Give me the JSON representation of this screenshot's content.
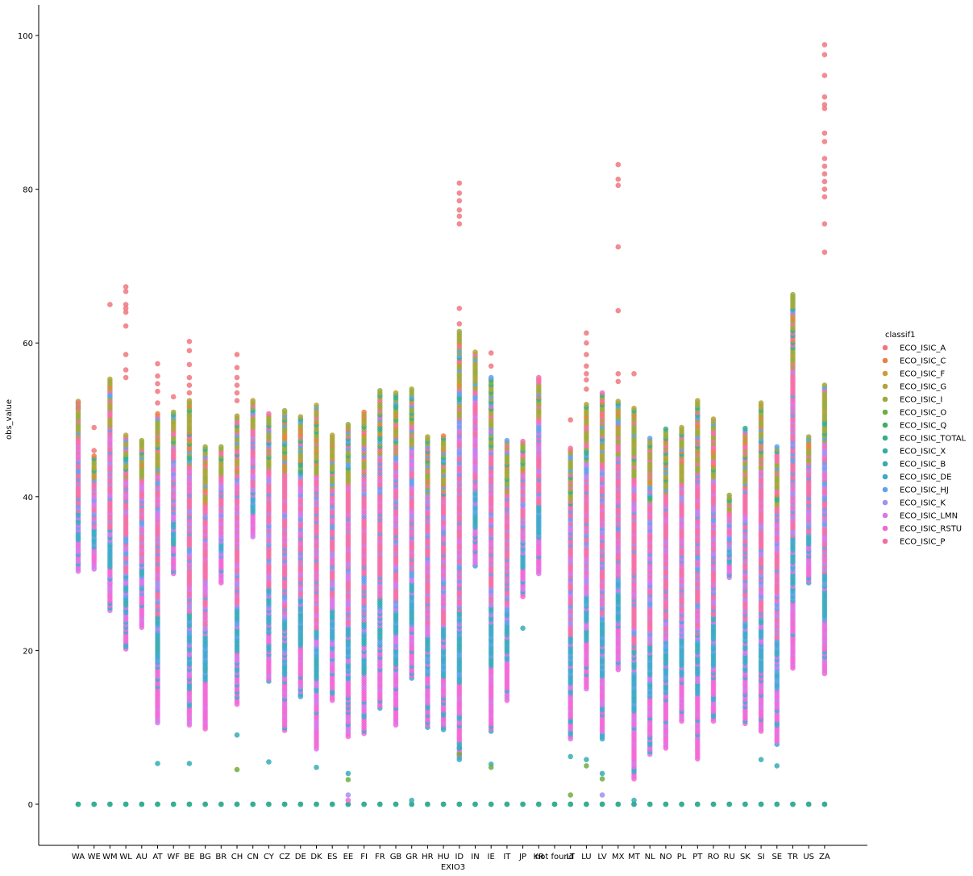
{
  "chart_data": {
    "type": "scatter",
    "xlabel": "EXIO3",
    "ylabel": "obs_value",
    "ylim": [
      -5,
      104
    ],
    "yticks": [
      0,
      20,
      40,
      60,
      80,
      100
    ],
    "grid": false,
    "categories": [
      "WA",
      "WE",
      "WM",
      "WL",
      "AU",
      "AT",
      "WF",
      "BE",
      "BG",
      "BR",
      "CH",
      "CN",
      "CY",
      "CZ",
      "DE",
      "DK",
      "ES",
      "EE",
      "FI",
      "FR",
      "GB",
      "GR",
      "HR",
      "HU",
      "ID",
      "IN",
      "IE",
      "IT",
      "JP",
      "KR",
      "not found",
      "LT",
      "LU",
      "LV",
      "MX",
      "MT",
      "NL",
      "NO",
      "PL",
      "PT",
      "RO",
      "RU",
      "SK",
      "SI",
      "SE",
      "TR",
      "US",
      "ZA"
    ],
    "legend": {
      "title": "classif1",
      "placement": "right",
      "items": [
        {
          "label": "ECO_ISIC_A",
          "color": "#f0777f"
        },
        {
          "label": "ECO_ISIC_C",
          "color": "#ec7f42"
        },
        {
          "label": "ECO_ISIC_F",
          "color": "#cf9a3c"
        },
        {
          "label": "ECO_ISIC_G",
          "color": "#b2a33a"
        },
        {
          "label": "ECO_ISIC_I",
          "color": "#9aaa3c"
        },
        {
          "label": "ECO_ISIC_O",
          "color": "#6fae3f"
        },
        {
          "label": "ECO_ISIC_Q",
          "color": "#3bb25e"
        },
        {
          "label": "ECO_ISIC_TOTAL",
          "color": "#35ae8c"
        },
        {
          "label": "ECO_ISIC_X",
          "color": "#36ad9e"
        },
        {
          "label": "ECO_ISIC_B",
          "color": "#38abb5"
        },
        {
          "label": "ECO_ISIC_DE",
          "color": "#3ea8cd"
        },
        {
          "label": "ECO_ISIC_HJ",
          "color": "#62a1ec"
        },
        {
          "label": "ECO_ISIC_K",
          "color": "#a48ff0"
        },
        {
          "label": "ECO_ISIC_LMN",
          "color": "#d877ea"
        },
        {
          "label": "ECO_ISIC_RSTU",
          "color": "#f267d6"
        },
        {
          "label": "ECO_ISIC_P",
          "color": "#f36ea7"
        }
      ]
    },
    "ranges": [
      {
        "cat": "WA",
        "min": 30.3,
        "max": 52.4,
        "top": [
          52.2,
          51.5
        ]
      },
      {
        "cat": "WE",
        "min": 30.6,
        "max": 45.3,
        "top": [
          49.0,
          46.0
        ]
      },
      {
        "cat": "WM",
        "min": 25.2,
        "max": 55.3,
        "top": [
          65.0
        ]
      },
      {
        "cat": "WL",
        "min": 20.2,
        "max": 48.0,
        "top": [
          67.3,
          66.7,
          65.0,
          64.5,
          64.0,
          62.2,
          58.5,
          56.5,
          55.5
        ]
      },
      {
        "cat": "AU",
        "min": 23.0,
        "max": 47.3,
        "top": []
      },
      {
        "cat": "AT",
        "min": 10.6,
        "max": 50.8,
        "top": [
          57.3,
          55.7,
          54.7,
          53.7,
          52.2
        ],
        "low": [
          5.3
        ]
      },
      {
        "cat": "WF",
        "min": 30.0,
        "max": 51.0,
        "top": [
          53.0
        ]
      },
      {
        "cat": "BE",
        "min": 10.3,
        "max": 52.5,
        "top": [
          60.2,
          59.0,
          57.2,
          55.5,
          54.5,
          53.5
        ],
        "low": [
          5.3
        ]
      },
      {
        "cat": "BG",
        "min": 9.8,
        "max": 46.5,
        "top": []
      },
      {
        "cat": "BR",
        "min": 28.8,
        "max": 46.5,
        "top": []
      },
      {
        "cat": "CH",
        "min": 13.0,
        "max": 50.5,
        "top": [
          58.5,
          56.8,
          55.5,
          54.5,
          53.5,
          52.5
        ],
        "low": [
          9.0,
          4.5
        ]
      },
      {
        "cat": "CN",
        "min": 34.8,
        "max": 52.5,
        "top": []
      },
      {
        "cat": "CY",
        "min": 16.0,
        "max": 50.8,
        "top": [],
        "low": [
          5.5
        ]
      },
      {
        "cat": "CZ",
        "min": 9.6,
        "max": 51.2,
        "top": []
      },
      {
        "cat": "DE",
        "min": 14.0,
        "max": 50.4,
        "top": []
      },
      {
        "cat": "DK",
        "min": 7.2,
        "max": 51.9,
        "top": [],
        "low": [
          4.8
        ]
      },
      {
        "cat": "ES",
        "min": 13.5,
        "max": 48.0,
        "top": []
      },
      {
        "cat": "EE",
        "min": 8.8,
        "max": 49.4,
        "top": [],
        "low": [
          4.0,
          3.2,
          1.2,
          0.5
        ]
      },
      {
        "cat": "FI",
        "min": 9.2,
        "max": 51.0,
        "top": []
      },
      {
        "cat": "FR",
        "min": 12.5,
        "max": 53.8,
        "top": []
      },
      {
        "cat": "GB",
        "min": 10.3,
        "max": 53.5,
        "top": []
      },
      {
        "cat": "GR",
        "min": 16.4,
        "max": 54.0,
        "top": [],
        "low": [
          0.5
        ]
      },
      {
        "cat": "HR",
        "min": 10.0,
        "max": 47.8,
        "top": []
      },
      {
        "cat": "HU",
        "min": 9.7,
        "max": 47.9,
        "top": []
      },
      {
        "cat": "ID",
        "min": 5.8,
        "max": 61.5,
        "top": [
          80.8,
          79.5,
          78.5,
          77.3,
          76.5,
          75.5,
          64.5,
          62.5
        ],
        "low": [
          7.3,
          6.5
        ]
      },
      {
        "cat": "IN",
        "min": 31.0,
        "max": 58.8,
        "top": []
      },
      {
        "cat": "IE",
        "min": 9.5,
        "max": 55.5,
        "top": [
          58.7,
          57.0
        ],
        "low": [
          5.2,
          4.8
        ]
      },
      {
        "cat": "IT",
        "min": 13.5,
        "max": 47.3,
        "top": []
      },
      {
        "cat": "JP",
        "min": 27.0,
        "max": 47.2,
        "top": [],
        "low": [
          22.9
        ]
      },
      {
        "cat": "KR",
        "min": 30.0,
        "max": 55.5,
        "top": []
      },
      {
        "cat": "not found",
        "min": 0,
        "max": 0,
        "top": []
      },
      {
        "cat": "LT",
        "min": 8.5,
        "max": 46.3,
        "top": [
          50.0
        ],
        "low": [
          6.2,
          1.2
        ]
      },
      {
        "cat": "LU",
        "min": 15.0,
        "max": 52.0,
        "top": [
          61.3,
          60.0,
          58.5,
          57.0,
          56.0,
          55.2,
          54.0
        ],
        "low": [
          5.8,
          5.0
        ]
      },
      {
        "cat": "LV",
        "min": 8.5,
        "max": 53.5,
        "top": [],
        "low": [
          4.0,
          3.3,
          1.2
        ]
      },
      {
        "cat": "MX",
        "min": 17.5,
        "max": 52.4,
        "top": [
          83.2,
          81.3,
          80.5,
          72.5,
          64.2,
          56.0,
          55.0
        ]
      },
      {
        "cat": "MT",
        "min": 3.3,
        "max": 51.5,
        "top": [
          56.0
        ],
        "low": [
          0.5
        ]
      },
      {
        "cat": "NL",
        "min": 6.5,
        "max": 47.6,
        "top": []
      },
      {
        "cat": "NO",
        "min": 7.3,
        "max": 48.8,
        "top": []
      },
      {
        "cat": "PL",
        "min": 10.8,
        "max": 49.0,
        "top": []
      },
      {
        "cat": "PT",
        "min": 5.9,
        "max": 52.5,
        "top": []
      },
      {
        "cat": "RO",
        "min": 10.8,
        "max": 50.1,
        "top": []
      },
      {
        "cat": "RU",
        "min": 29.5,
        "max": 40.2,
        "top": []
      },
      {
        "cat": "SK",
        "min": 10.5,
        "max": 48.9,
        "top": []
      },
      {
        "cat": "SI",
        "min": 9.5,
        "max": 52.2,
        "top": [],
        "low": [
          5.8
        ]
      },
      {
        "cat": "SE",
        "min": 7.8,
        "max": 46.5,
        "top": [],
        "low": [
          5.0
        ]
      },
      {
        "cat": "TR",
        "min": 17.7,
        "max": 66.3,
        "top": []
      },
      {
        "cat": "US",
        "min": 28.8,
        "max": 47.8,
        "top": []
      },
      {
        "cat": "ZA",
        "min": 17.0,
        "max": 54.5,
        "top": [
          98.8,
          97.5,
          94.8,
          92.0,
          91.0,
          90.5,
          87.3,
          86.2,
          84.0,
          83.0,
          82.0,
          81.0,
          80.0,
          79.0,
          75.5,
          71.8
        ]
      }
    ]
  }
}
